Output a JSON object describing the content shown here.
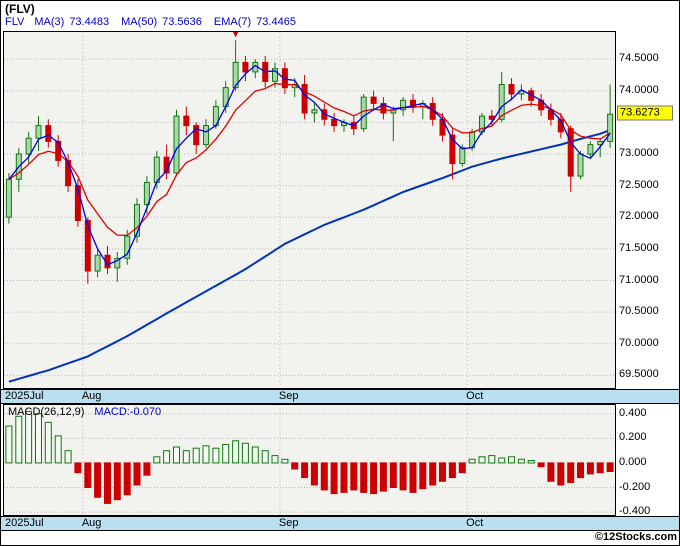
{
  "header": {
    "title": "(FLV)"
  },
  "legend": {
    "symbol": "FLV",
    "items": [
      {
        "label": "MA(3)",
        "value": "73.4483"
      },
      {
        "label": "MA(50)",
        "value": "73.5636"
      },
      {
        "label": "EMA(7)",
        "value": "73.4465"
      }
    ]
  },
  "price_tag": {
    "label": "73.6273",
    "value": 73.6273
  },
  "footer": {
    "watermark": "©12Stocks.com"
  },
  "colors": {
    "up": "#117711",
    "up_fill": "#a8d8a8",
    "down": "#cc0000",
    "ma3": "#0000ee",
    "ma50": "#0033bb",
    "ema7": "#e00000",
    "grid": "#b5b5b5",
    "panel_bg": "#f2f2ee",
    "band_bg": "#b9dff0",
    "legend_text": "#0000cc",
    "macd_pos": "#117711",
    "macd_pos_fill": "#f2faf2",
    "macd_neg": "#cc0000"
  },
  "chart_data": {
    "type": "candlestick_with_macd_histogram",
    "title": "(FLV)",
    "price": {
      "ylim": [
        69.3,
        74.93
      ],
      "gridlines": [
        74.5,
        74.0,
        73.5,
        73.0,
        72.5,
        72.0,
        71.5,
        71.0,
        70.5,
        70.0,
        69.5
      ],
      "yticks": [
        {
          "v": 74.5,
          "label": "74.5000"
        },
        {
          "v": 74.0,
          "label": "74.0000"
        },
        {
          "v": 73.0,
          "label": "73.0000"
        },
        {
          "v": 72.5,
          "label": "72.5000"
        },
        {
          "v": 72.0,
          "label": "72.0000"
        },
        {
          "v": 71.5,
          "label": "71.5000"
        },
        {
          "v": 71.0,
          "label": "71.0000"
        },
        {
          "v": 70.5,
          "label": "70.5000"
        },
        {
          "v": 70.0,
          "label": "70.0000"
        },
        {
          "v": 69.5,
          "label": "69.5000"
        }
      ],
      "last_price": 73.6273,
      "candles": [
        [
          72.0,
          72.7,
          71.9,
          72.6
        ],
        [
          72.6,
          73.1,
          72.4,
          73.0
        ],
        [
          73.0,
          73.35,
          72.85,
          73.25
        ],
        [
          73.25,
          73.6,
          73.05,
          73.45
        ],
        [
          73.45,
          73.55,
          73.1,
          73.2
        ],
        [
          73.2,
          73.3,
          72.8,
          72.9
        ],
        [
          72.9,
          73.0,
          72.4,
          72.5
        ],
        [
          72.5,
          72.6,
          71.85,
          71.95
        ],
        [
          71.95,
          72.0,
          70.95,
          71.15
        ],
        [
          71.15,
          71.5,
          71.05,
          71.4
        ],
        [
          71.4,
          71.55,
          71.1,
          71.2
        ],
        [
          71.2,
          71.45,
          70.98,
          71.35
        ],
        [
          71.35,
          71.8,
          71.25,
          71.7
        ],
        [
          71.7,
          72.3,
          71.6,
          72.2
        ],
        [
          72.2,
          72.65,
          72.05,
          72.55
        ],
        [
          72.55,
          73.05,
          72.45,
          72.95
        ],
        [
          72.95,
          73.15,
          72.6,
          72.7
        ],
        [
          72.7,
          73.7,
          72.65,
          73.6
        ],
        [
          73.6,
          73.75,
          73.3,
          73.45
        ],
        [
          73.45,
          73.5,
          73.0,
          73.15
        ],
        [
          73.15,
          73.55,
          73.1,
          73.45
        ],
        [
          73.45,
          73.85,
          73.4,
          73.75
        ],
        [
          73.75,
          74.15,
          73.65,
          74.05
        ],
        [
          74.05,
          74.8,
          74.0,
          74.45
        ],
        [
          74.45,
          74.55,
          74.15,
          74.3
        ],
        [
          74.3,
          74.5,
          74.2,
          74.45
        ],
        [
          74.45,
          74.55,
          74.05,
          74.15
        ],
        [
          74.15,
          74.45,
          74.05,
          74.35
        ],
        [
          74.35,
          74.45,
          73.95,
          74.05
        ],
        [
          74.05,
          74.2,
          73.9,
          74.1
        ],
        [
          74.1,
          74.25,
          73.55,
          73.65
        ],
        [
          73.65,
          73.8,
          73.5,
          73.7
        ],
        [
          73.7,
          73.8,
          73.45,
          73.55
        ],
        [
          73.55,
          73.65,
          73.35,
          73.45
        ],
        [
          73.45,
          73.55,
          73.35,
          73.5
        ],
        [
          73.5,
          73.6,
          73.3,
          73.4
        ],
        [
          73.4,
          73.95,
          73.35,
          73.9
        ],
        [
          73.9,
          74.0,
          73.7,
          73.8
        ],
        [
          73.8,
          73.9,
          73.55,
          73.65
        ],
        [
          73.65,
          73.75,
          73.2,
          73.7
        ],
        [
          73.7,
          73.9,
          73.6,
          73.85
        ],
        [
          73.85,
          73.95,
          73.65,
          73.75
        ],
        [
          73.75,
          73.85,
          73.55,
          73.8
        ],
        [
          73.8,
          73.9,
          73.45,
          73.55
        ],
        [
          73.55,
          73.65,
          73.2,
          73.3
        ],
        [
          73.3,
          73.4,
          72.6,
          72.85
        ],
        [
          72.85,
          73.15,
          72.8,
          73.1
        ],
        [
          73.1,
          73.4,
          73.05,
          73.35
        ],
        [
          73.35,
          73.65,
          73.3,
          73.6
        ],
        [
          73.6,
          73.7,
          73.45,
          73.55
        ],
        [
          73.55,
          74.3,
          73.5,
          74.1
        ],
        [
          74.1,
          74.2,
          73.85,
          73.95
        ],
        [
          73.95,
          74.1,
          73.85,
          74.0
        ],
        [
          74.0,
          74.05,
          73.75,
          73.85
        ],
        [
          73.85,
          73.95,
          73.6,
          73.7
        ],
        [
          73.7,
          73.8,
          73.45,
          73.55
        ],
        [
          73.55,
          73.65,
          73.25,
          73.35
        ],
        [
          73.4,
          73.45,
          72.4,
          72.65
        ],
        [
          72.65,
          73.05,
          72.6,
          73.0
        ],
        [
          73.0,
          73.2,
          72.95,
          73.15
        ],
        [
          73.15,
          73.25,
          72.95,
          73.2
        ],
        [
          73.2,
          74.1,
          73.1,
          73.63
        ]
      ],
      "ma50_keys": [
        [
          0,
          69.4
        ],
        [
          4,
          69.58
        ],
        [
          8,
          69.8
        ],
        [
          12,
          70.12
        ],
        [
          16,
          70.48
        ],
        [
          20,
          70.83
        ],
        [
          24,
          71.18
        ],
        [
          28,
          71.58
        ],
        [
          32,
          71.88
        ],
        [
          36,
          72.12
        ],
        [
          40,
          72.4
        ],
        [
          44,
          72.62
        ],
        [
          47,
          72.8
        ],
        [
          50,
          72.93
        ],
        [
          53,
          73.04
        ],
        [
          56,
          73.15
        ],
        [
          58,
          73.24
        ],
        [
          60,
          73.32
        ],
        [
          61,
          73.38
        ]
      ],
      "marker": {
        "index": 23,
        "value": 74.8
      }
    },
    "macd": {
      "label": "MACD(26,12,9)",
      "value_label": "MACD:-0.070",
      "last_value": -0.07,
      "ylim": [
        -0.424,
        0.472
      ],
      "yticks": [
        {
          "v": 0.4,
          "label": "0.400"
        },
        {
          "v": 0.2,
          "label": "0.200"
        },
        {
          "v": 0.0,
          "label": "0.000"
        },
        {
          "v": -0.2,
          "label": "-0.200"
        },
        {
          "v": -0.4,
          "label": "-0.400"
        }
      ],
      "histogram": [
        0.3,
        0.38,
        0.42,
        0.4,
        0.33,
        0.22,
        0.1,
        -0.08,
        -0.2,
        -0.28,
        -0.33,
        -0.3,
        -0.26,
        -0.18,
        -0.1,
        0.05,
        0.1,
        0.13,
        0.1,
        0.12,
        0.14,
        0.12,
        0.15,
        0.18,
        0.16,
        0.13,
        0.1,
        0.06,
        0.03,
        -0.05,
        -0.12,
        -0.18,
        -0.22,
        -0.25,
        -0.24,
        -0.22,
        -0.24,
        -0.25,
        -0.23,
        -0.2,
        -0.22,
        -0.24,
        -0.21,
        -0.18,
        -0.15,
        -0.12,
        -0.08,
        0.03,
        0.05,
        0.06,
        0.04,
        0.05,
        0.03,
        0.02,
        -0.03,
        -0.15,
        -0.18,
        -0.16,
        -0.12,
        -0.09,
        -0.08,
        -0.07
      ]
    },
    "xaxis": {
      "labels": [
        {
          "label": "2025Jul",
          "index": 0,
          "line": false
        },
        {
          "label": "Aug",
          "index": 8,
          "line": true
        },
        {
          "label": "Sep",
          "index": 28,
          "line": true
        },
        {
          "label": "Oct",
          "index": 47,
          "line": true
        }
      ]
    }
  }
}
